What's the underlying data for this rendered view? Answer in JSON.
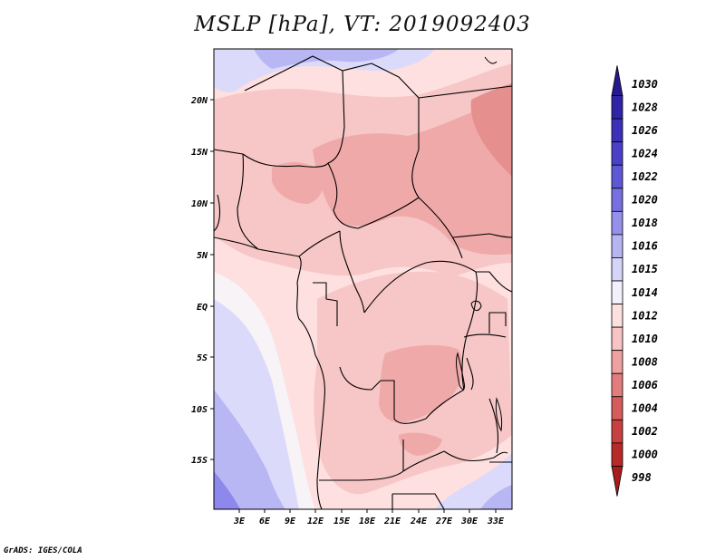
{
  "title": "MSLP [hPa], VT: 2019092403",
  "credit": "GrADS: IGES/COLA",
  "map": {
    "lon_labels": [
      "3E",
      "6E",
      "9E",
      "12E",
      "15E",
      "18E",
      "21E",
      "24E",
      "27E",
      "30E",
      "33E"
    ],
    "lat_labels": [
      "20N",
      "15N",
      "10N",
      "5N",
      "EQ",
      "5S",
      "10S",
      "15S"
    ]
  },
  "colorbar": {
    "levels": [
      "1030",
      "1028",
      "1026",
      "1024",
      "1022",
      "1020",
      "1018",
      "1016",
      "1015",
      "1014",
      "1012",
      "1010",
      "1008",
      "1006",
      "1004",
      "1002",
      "1000",
      "998"
    ],
    "colors": [
      "#26188f",
      "#2f23a6",
      "#3b31b8",
      "#4a41c8",
      "#5f58d6",
      "#7770e0",
      "#9590ea",
      "#b7b4f2",
      "#d6d4f8",
      "#f1f0fc",
      "#fde0e0",
      "#f8c3c3",
      "#efa0a0",
      "#e37d7d",
      "#d65c5c",
      "#c94040",
      "#b82a2a",
      "#a81c1c"
    ]
  },
  "field_colors": {
    "high_blue": "#8d88ec",
    "mid_blue": "#b9b6f4",
    "light_blue": "#dcdafa",
    "near_white": "#f7f3f6",
    "pale_pink": "#fde0df",
    "light_pink": "#f7c6c6",
    "pink": "#f0a9a9",
    "deep_pink": "#e58f8f"
  }
}
